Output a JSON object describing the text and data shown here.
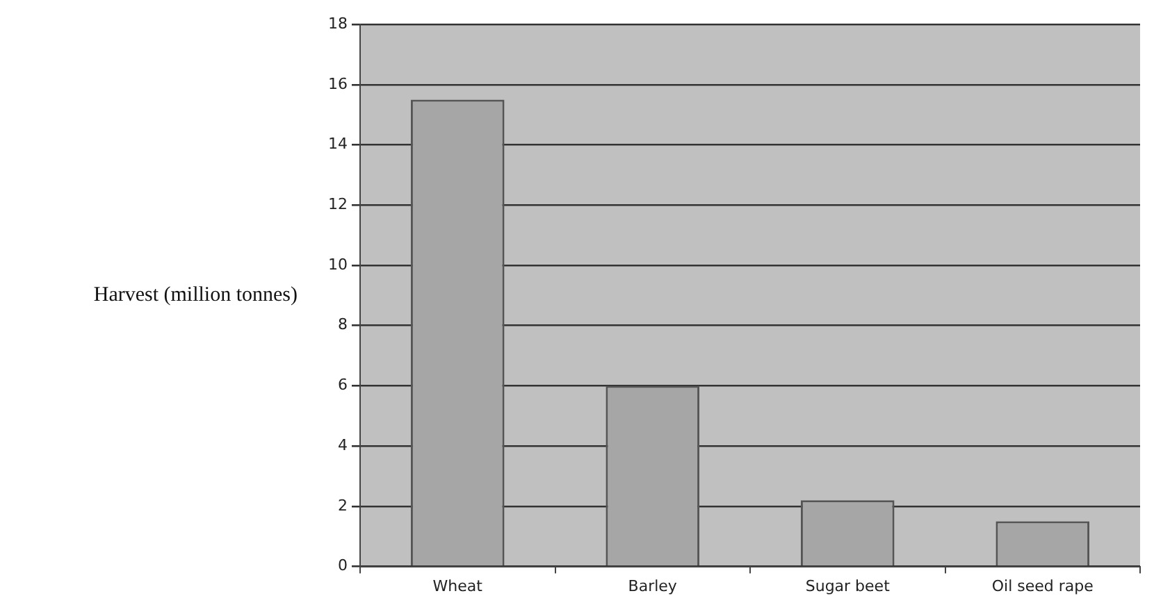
{
  "chart_data": {
    "type": "bar",
    "ylabel": "Harvest (million tonnes)",
    "categories": [
      "Wheat",
      "Barley",
      "Sugar beet",
      "Oil seed rape"
    ],
    "values": [
      15.5,
      6.0,
      2.2,
      1.5
    ],
    "color": "#a6a6a6",
    "ylim": [
      0,
      18
    ],
    "yticks": [
      0,
      2,
      4,
      6,
      8,
      10,
      12,
      14,
      16,
      18
    ],
    "grid": "y",
    "legend": false
  }
}
